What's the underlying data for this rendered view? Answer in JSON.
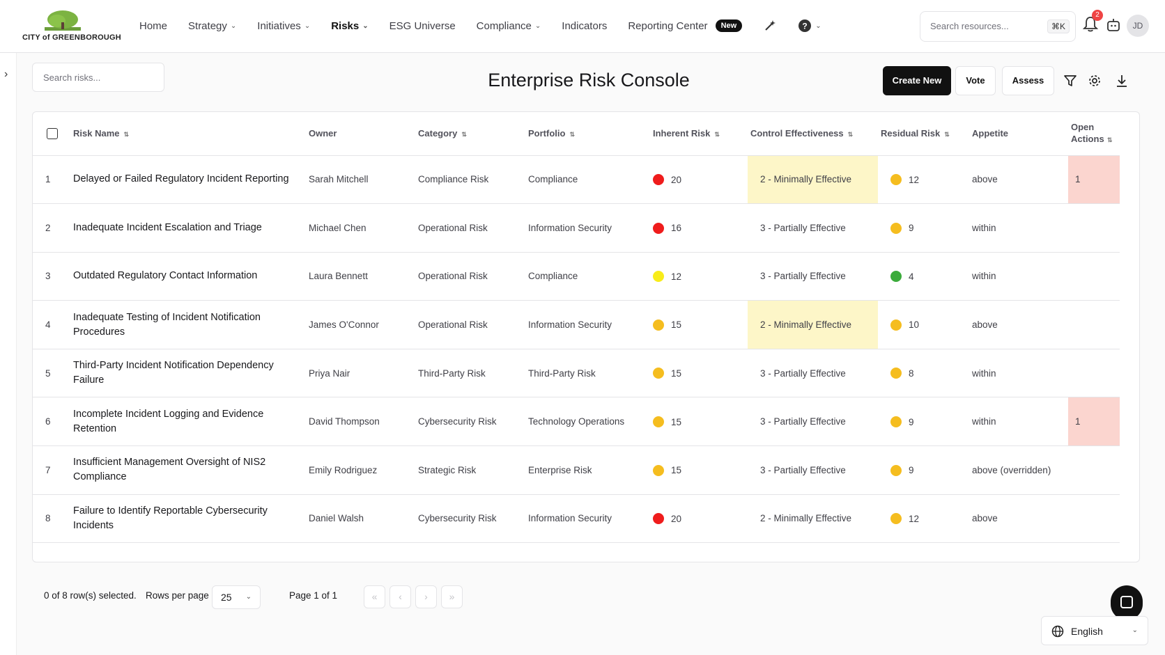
{
  "brand": {
    "logo_text": "CITY of GREENBOROUGH",
    "colors": {
      "logo_green": "#7cb342",
      "dark": "#111111"
    }
  },
  "nav": {
    "items": [
      {
        "label": "Home",
        "dropdown": false
      },
      {
        "label": "Strategy",
        "dropdown": true
      },
      {
        "label": "Initiatives",
        "dropdown": true
      },
      {
        "label": "Risks",
        "dropdown": true,
        "active": true
      },
      {
        "label": "ESG Universe",
        "dropdown": false
      },
      {
        "label": "Compliance",
        "dropdown": true
      },
      {
        "label": "Indicators",
        "dropdown": false
      },
      {
        "label": "Reporting Center",
        "dropdown": false
      }
    ],
    "new_badge": "New",
    "icons": [
      "magic-wand-icon",
      "help-icon"
    ]
  },
  "header": {
    "search_placeholder": "Search resources...",
    "shortcut": "⌘K",
    "notification_count": "2",
    "avatar_initials": "JD"
  },
  "page": {
    "title": "Enterprise Risk Console",
    "search_placeholder": "Search risks...",
    "buttons": {
      "create": "Create New",
      "vote": "Vote",
      "assess": "Assess"
    }
  },
  "table": {
    "columns": [
      "Risk Name",
      "Owner",
      "Category",
      "Portfolio",
      "Inherent Risk",
      "Control Effectiveness",
      "Residual Risk",
      "Appetite",
      "Open Actions"
    ],
    "rows": [
      {
        "num": "1",
        "name": "Delayed or Failed Regulatory Incident Reporting",
        "owner": "Sarah Mitchell",
        "category": "Compliance Risk",
        "portfolio": "Compliance",
        "inherent_color": "#ef1c1c",
        "inherent": "20",
        "control": "2 - Minimally Effective",
        "control_highlight": true,
        "residual_color": "#f5bd1f",
        "residual": "12",
        "appetite": "above",
        "actions": "1",
        "actions_highlight": true
      },
      {
        "num": "2",
        "name": "Inadequate Incident Escalation and Triage",
        "owner": "Michael Chen",
        "category": "Operational Risk",
        "portfolio": "Information Security",
        "inherent_color": "#ef1c1c",
        "inherent": "16",
        "control": "3 - Partially Effective",
        "control_highlight": false,
        "residual_color": "#f5bd1f",
        "residual": "9",
        "appetite": "within",
        "actions": "",
        "actions_highlight": false
      },
      {
        "num": "3",
        "name": "Outdated Regulatory Contact Information",
        "owner": "Laura Bennett",
        "category": "Operational Risk",
        "portfolio": "Compliance",
        "inherent_color": "#f8ec1a",
        "inherent": "12",
        "control": "3 - Partially Effective",
        "control_highlight": false,
        "residual_color": "#3bab3b",
        "residual": "4",
        "appetite": "within",
        "actions": "",
        "actions_highlight": false
      },
      {
        "num": "4",
        "name": "Inadequate Testing of Incident Notification Procedures",
        "owner": "James O'Connor",
        "category": "Operational Risk",
        "portfolio": "Information Security",
        "inherent_color": "#f5bd1f",
        "inherent": "15",
        "control": "2 - Minimally Effective",
        "control_highlight": true,
        "residual_color": "#f5bd1f",
        "residual": "10",
        "appetite": "above",
        "actions": "",
        "actions_highlight": false
      },
      {
        "num": "5",
        "name": "Third-Party Incident Notification Dependency Failure",
        "owner": "Priya Nair",
        "category": "Third-Party Risk",
        "portfolio": "Third-Party Risk",
        "inherent_color": "#f5bd1f",
        "inherent": "15",
        "control": "3 - Partially Effective",
        "control_highlight": false,
        "residual_color": "#f5bd1f",
        "residual": "8",
        "appetite": "within",
        "actions": "",
        "actions_highlight": false
      },
      {
        "num": "6",
        "name": "Incomplete Incident Logging and Evidence Retention",
        "owner": "David Thompson",
        "category": "Cybersecurity Risk",
        "portfolio": "Technology Operations",
        "inherent_color": "#f5bd1f",
        "inherent": "15",
        "control": "3 - Partially Effective",
        "control_highlight": false,
        "residual_color": "#f5bd1f",
        "residual": "9",
        "appetite": "within",
        "actions": "1",
        "actions_highlight": true
      },
      {
        "num": "7",
        "name": "Insufficient Management Oversight of NIS2 Compliance",
        "owner": "Emily Rodriguez",
        "category": "Strategic Risk",
        "portfolio": "Enterprise Risk",
        "inherent_color": "#f5bd1f",
        "inherent": "15",
        "control": "3 - Partially Effective",
        "control_highlight": false,
        "residual_color": "#f5bd1f",
        "residual": "9",
        "appetite": "above (overridden)",
        "actions": "",
        "actions_highlight": false
      },
      {
        "num": "8",
        "name": "Failure to Identify Reportable Cybersecurity Incidents",
        "owner": "Daniel Walsh",
        "category": "Cybersecurity Risk",
        "portfolio": "Information Security",
        "inherent_color": "#ef1c1c",
        "inherent": "20",
        "control": "2 - Minimally Effective",
        "control_highlight": false,
        "residual_color": "#f5bd1f",
        "residual": "12",
        "appetite": "above",
        "actions": "",
        "actions_highlight": false
      }
    ]
  },
  "footer": {
    "selected_text": "0 of 8 row(s) selected.",
    "rows_per_page_label": "Rows per page",
    "rows_per_page": "25",
    "page_text": "Page 1 of 1",
    "language": "English"
  }
}
